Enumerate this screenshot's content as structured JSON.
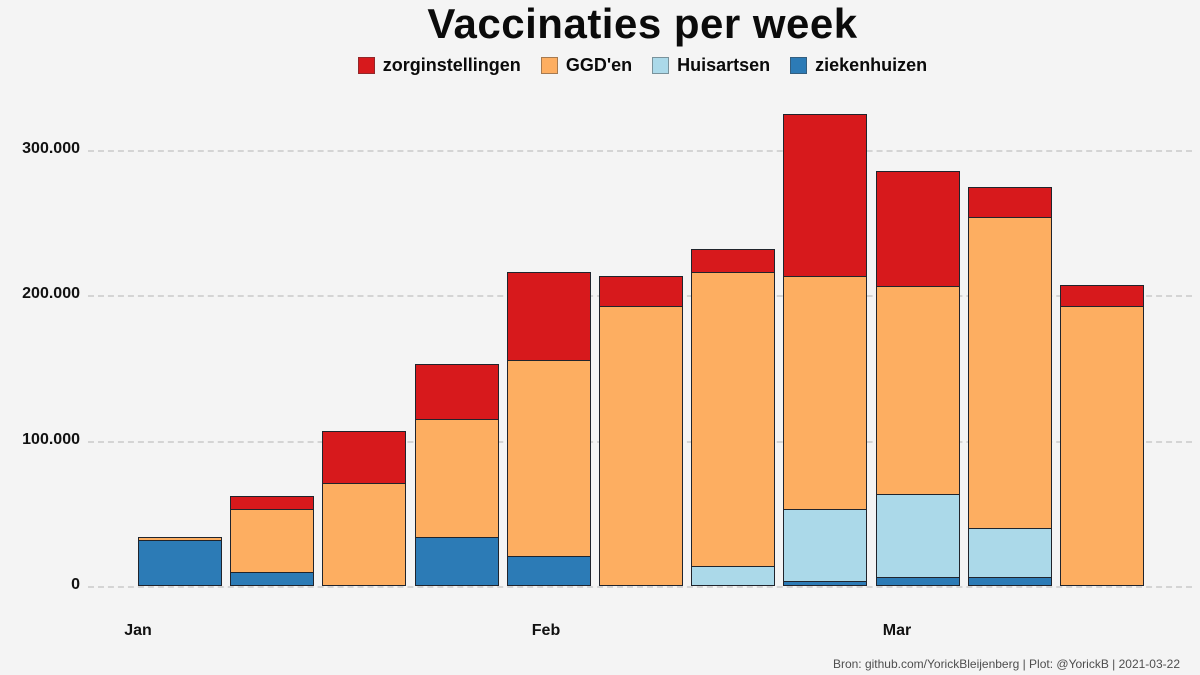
{
  "title": "Vaccinaties per week",
  "footer": {
    "text": "Bron: github.com/YorickBleijenberg | Plot: @YorickB  |  2021-03-22"
  },
  "legend": {
    "items": [
      {
        "label": "zorginstellingen",
        "color": "#d7191c"
      },
      {
        "label": "GGD'en",
        "color": "#fdae61"
      },
      {
        "label": "Huisartsen",
        "color": "#abd9e9"
      },
      {
        "label": "ziekenhuizen",
        "color": "#2c7bb6"
      }
    ]
  },
  "y_axis": {
    "tick_values": [
      0,
      100000,
      200000,
      300000
    ],
    "tick_labels": [
      "0",
      "100.000",
      "200.000",
      "300.000"
    ]
  },
  "x_axis": {
    "tick_labels": [
      "Jan",
      "Feb",
      "Mar"
    ]
  },
  "colors": {
    "background": "#f4f4f4",
    "gridline": "#d4d4d4",
    "bar_border": "#20242c",
    "title_text": "#0b0b0b",
    "footer_text": "#4e4e4e"
  },
  "chart_data": {
    "type": "bar",
    "stacked": true,
    "title": "Vaccinaties per week",
    "xlabel": "",
    "ylabel": "",
    "n_bars": 11,
    "x_tick_labels": [
      "Jan",
      "Feb",
      "Mar"
    ],
    "ylim": [
      0,
      330000
    ],
    "grid": "horizontal-dashed",
    "legend_position": "top",
    "stack_order_bottom_to_top": [
      "ziekenhuizen",
      "Huisartsen",
      "GGD'en",
      "zorginstellingen"
    ],
    "series": [
      {
        "name": "zorginstellingen",
        "color": "#d7191c",
        "values": [
          0,
          9700,
          36600,
          38600,
          61200,
          21400,
          16800,
          112200,
          79800,
          21400,
          15000
        ]
      },
      {
        "name": "GGD'en",
        "color": "#fdae61",
        "values": [
          2800,
          43500,
          70400,
          81100,
          134800,
          192000,
          201800,
          159900,
          143300,
          213900,
          192000
        ]
      },
      {
        "name": "Huisartsen",
        "color": "#abd9e9",
        "values": [
          0,
          0,
          0,
          0,
          0,
          0,
          13300,
          49700,
          57500,
          33800,
          0
        ]
      },
      {
        "name": "ziekenhuizen",
        "color": "#2c7bb6",
        "values": [
          31000,
          9000,
          0,
          33000,
          19800,
          0,
          0,
          2800,
          5300,
          5300,
          0
        ]
      }
    ]
  }
}
